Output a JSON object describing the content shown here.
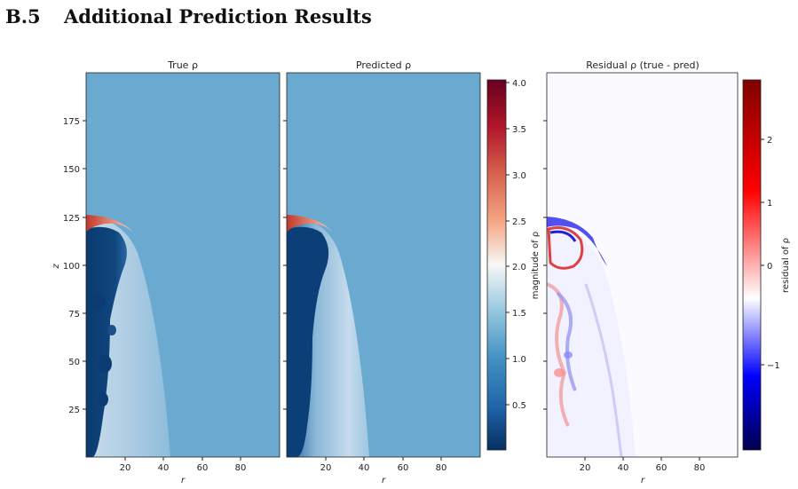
{
  "section": {
    "number": "B.5",
    "title": "Additional Prediction Results"
  },
  "panels": [
    {
      "title": "True ρ",
      "xlabel": "r",
      "ylabel": "z"
    },
    {
      "title": "Predicted ρ",
      "xlabel": "r"
    },
    {
      "title": "Residual ρ (true - pred)",
      "xlabel": "r"
    }
  ],
  "colorbars": [
    {
      "label": "magnitude of ρ",
      "ticks": [
        "0.5",
        "1.0",
        "1.5",
        "2.0",
        "2.5",
        "3.0",
        "3.5",
        "4.0"
      ],
      "colormap": "RdBu_r"
    },
    {
      "label": "residual of ρ",
      "ticks": [
        "−1",
        "0",
        "1",
        "2"
      ],
      "colormap": "seismic"
    }
  ],
  "chart_data": [
    {
      "type": "heatmap",
      "title": "True ρ",
      "xlabel": "r",
      "ylabel": "z",
      "x_ticks": [
        20,
        40,
        60,
        80
      ],
      "y_ticks": [
        25,
        50,
        75,
        100,
        125,
        150,
        175
      ],
      "xlim": [
        0,
        100
      ],
      "ylim": [
        0,
        200
      ],
      "value_range": [
        0,
        4.05
      ],
      "background_value": 1.1,
      "features": "dense jet region r 0-45, z 0-125 with dark core (~0.2) near r 0-15 and high-density cap (~3) at z 115-125"
    },
    {
      "type": "heatmap",
      "title": "Predicted ρ",
      "xlabel": "r",
      "x_ticks": [
        20,
        40,
        60,
        80
      ],
      "xlim": [
        0,
        100
      ],
      "ylim": [
        0,
        200
      ],
      "value_range": [
        0,
        4.05
      ],
      "background_value": 1.1
    },
    {
      "type": "heatmap",
      "title": "Residual ρ (true - pred)",
      "xlabel": "r",
      "x_ticks": [
        20,
        40,
        60,
        80
      ],
      "xlim": [
        0,
        100
      ],
      "ylim": [
        0,
        200
      ],
      "value_range": [
        -1.9,
        2.8
      ],
      "background_value": 0
    }
  ]
}
